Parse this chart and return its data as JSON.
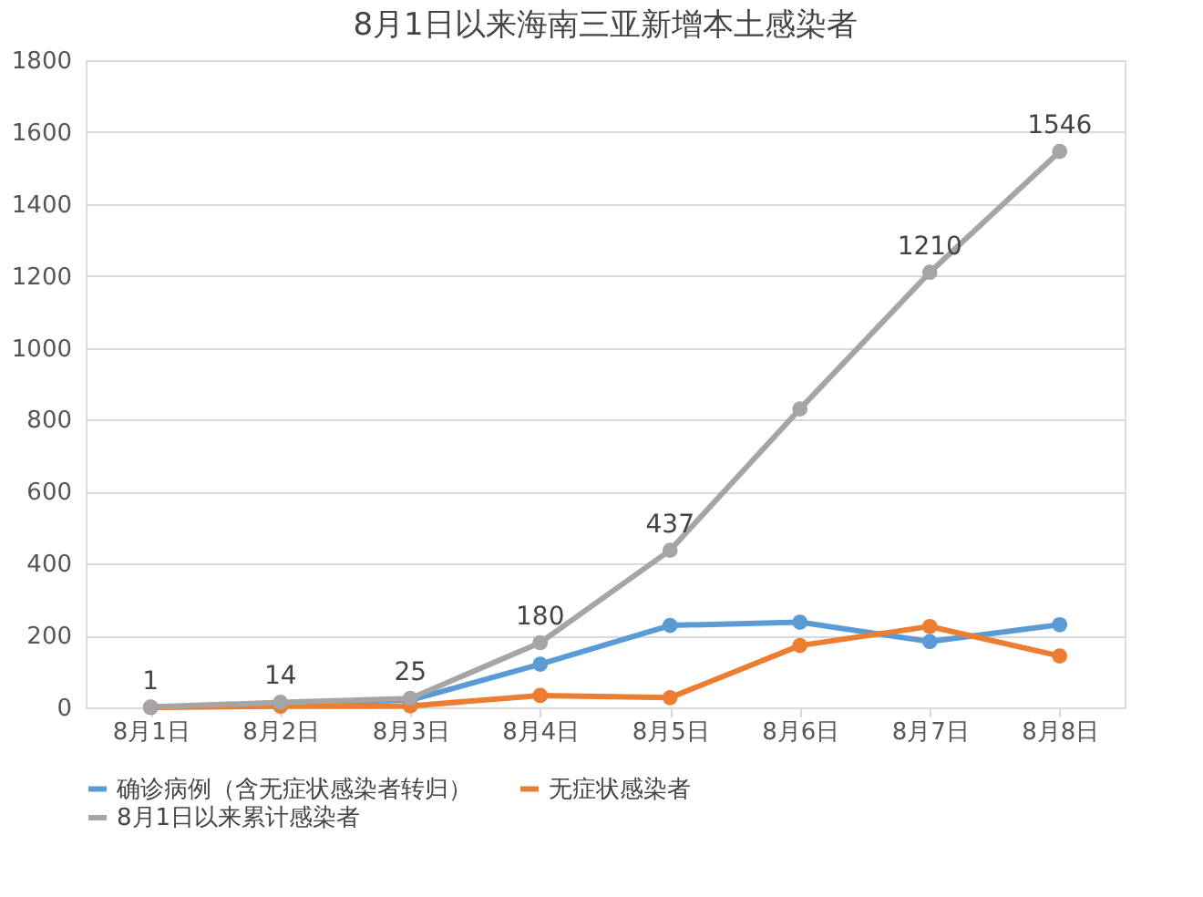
{
  "chart_data": {
    "type": "line",
    "title": "8月1日以来海南三亚新增本土感染者",
    "categories": [
      "8月1日",
      "8月2日",
      "8月3日",
      "8月4日",
      "8月5日",
      "8月6日",
      "8月7日",
      "8月8日"
    ],
    "series": [
      {
        "name": "确诊病例（含无症状感染者转归）",
        "color": "#5b9bd5",
        "values": [
          0,
          11,
          20,
          120,
          228,
          237,
          183,
          230
        ]
      },
      {
        "name": "无症状感染者",
        "color": "#ed7d31",
        "values": [
          0,
          3,
          4,
          33,
          27,
          172,
          225,
          143
        ]
      },
      {
        "name": "8月1日以来累计感染者",
        "color": "#a5a5a5",
        "values": [
          1,
          14,
          25,
          180,
          437,
          830,
          1210,
          1546
        ],
        "value_labels": [
          "1",
          "14",
          "25",
          "180",
          "437",
          null,
          "1210",
          "1546"
        ]
      }
    ],
    "ylim": [
      0,
      1800
    ],
    "yticks": [
      0,
      200,
      400,
      600,
      800,
      1000,
      1200,
      1400,
      1600,
      1800
    ],
    "grid": "y",
    "legend": "bottom",
    "marker": "circle",
    "line_style": "solid"
  }
}
